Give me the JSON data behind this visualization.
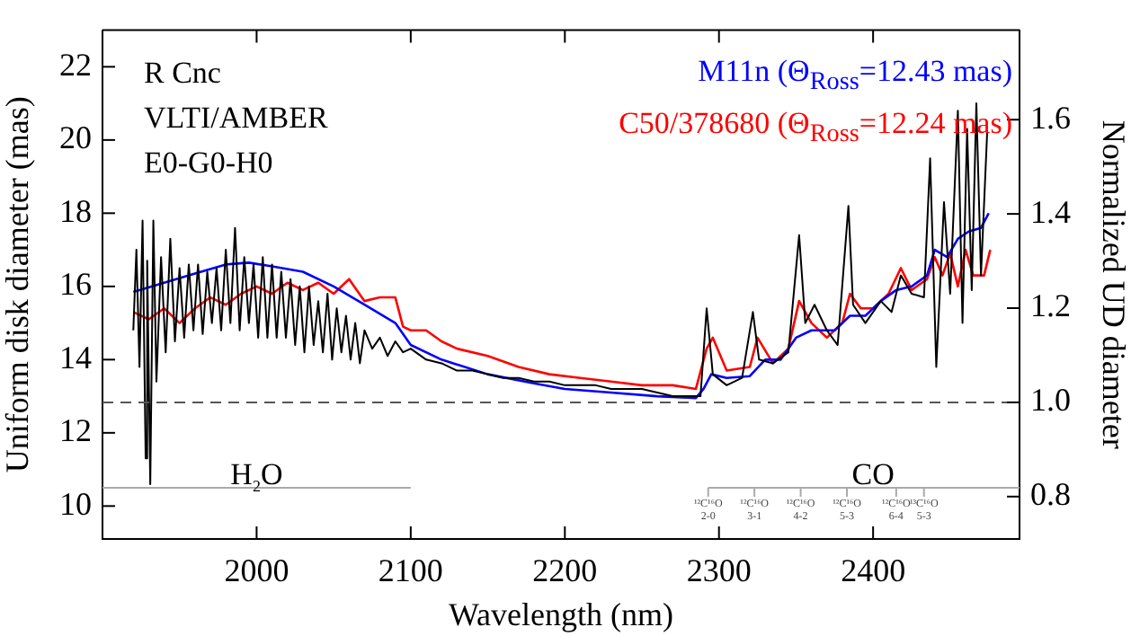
{
  "chart_data": {
    "type": "line",
    "xlabel": "Wavelength (nm)",
    "ylabel": "Uniform disk diameter (mas)",
    "y2label": "Normalized UD diameter",
    "xlim": [
      1900,
      2495
    ],
    "xticks": [
      2000,
      2100,
      2200,
      2300,
      2400
    ],
    "ylim": [
      9.1,
      23
    ],
    "yticks": [
      10,
      12,
      14,
      16,
      18,
      20,
      22
    ],
    "y2lim": [
      0.71,
      1.79
    ],
    "y2ticks": [
      0.8,
      {
        "value": 1.0,
        "label": "1.0"
      },
      1.2,
      1.4,
      1.6
    ],
    "grid": false,
    "legend": "top right",
    "marker": "none",
    "line_style": "solid",
    "ref_lines": [
      {
        "axis": "y2",
        "value": 1.0,
        "color": "#555555",
        "line_style": "dashed"
      }
    ],
    "annotations": [
      "R Cnc",
      "VLTI/AMBER",
      "E0-G0-H0",
      {
        "text": "H$_{2}$O",
        "x": 2000,
        "y": 10.5
      },
      {
        "text": "CO",
        "x": 2400,
        "y": 10.5
      },
      {
        "text": "¹²C¹⁶O 2-0",
        "x": 2293,
        "y": 10.5
      },
      {
        "text": "¹²C¹⁶O 3-1",
        "x": 2323,
        "y": 10.5
      },
      {
        "text": "¹²C¹⁶O 4-2",
        "x": 2353,
        "y": 10.5
      },
      {
        "text": "¹²C¹⁶O 5-3",
        "x": 2383,
        "y": 10.5
      },
      {
        "text": "¹²C¹⁶O 6-4",
        "x": 2415,
        "y": 10.5
      },
      {
        "text": "¹³C¹⁶O 5-3",
        "x": 2433,
        "y": 10.5
      }
    ],
    "series": [
      {
        "color": "#000000",
        "x": [
          1920,
          1922,
          1924,
          1926,
          1928,
          1929,
          1931,
          1933,
          1935,
          1938,
          1941,
          1944,
          1947,
          1950,
          1953,
          1956,
          1959,
          1962,
          1965,
          1968,
          1971,
          1974,
          1977,
          1980,
          1983,
          1986,
          1989,
          1992,
          1995,
          1998,
          2001,
          2004,
          2007,
          2010,
          2013,
          2016,
          2019,
          2022,
          2025,
          2028,
          2031,
          2034,
          2037,
          2040,
          2043,
          2046,
          2049,
          2052,
          2055,
          2058,
          2061,
          2064,
          2067,
          2070,
          2075,
          2080,
          2085,
          2090,
          2095,
          2100,
          2110,
          2120,
          2130,
          2140,
          2150,
          2160,
          2170,
          2180,
          2190,
          2200,
          2210,
          2220,
          2230,
          2240,
          2250,
          2260,
          2270,
          2280,
          2288,
          2292,
          2296,
          2305,
          2315,
          2322,
          2326,
          2335,
          2345,
          2352,
          2356,
          2362,
          2370,
          2377,
          2384,
          2387,
          2395,
          2405,
          2412,
          2418,
          2425,
          2433,
          2437,
          2441,
          2446,
          2450,
          2455,
          2458,
          2461,
          2464,
          2467,
          2470,
          2474
        ],
        "values": [
          14.8,
          17.0,
          13.8,
          17.8,
          11.3,
          16.7,
          10.6,
          17.8,
          13.4,
          16.8,
          14.2,
          17.3,
          14.5,
          16.5,
          14.6,
          16.6,
          14.8,
          16.6,
          14.7,
          16.4,
          15.0,
          16.5,
          14.8,
          17.0,
          15.0,
          17.6,
          14.8,
          16.8,
          15.0,
          16.6,
          14.6,
          16.8,
          14.6,
          16.6,
          14.6,
          16.4,
          14.6,
          16.2,
          14.4,
          16.0,
          14.2,
          16.0,
          14.4,
          15.6,
          14.2,
          15.8,
          14.0,
          15.4,
          14.2,
          15.2,
          14.0,
          15.0,
          13.9,
          14.8,
          14.3,
          14.6,
          14.1,
          14.5,
          14.2,
          14.3,
          14.0,
          13.9,
          13.7,
          13.7,
          13.6,
          13.5,
          13.5,
          13.4,
          13.4,
          13.3,
          13.3,
          13.3,
          13.2,
          13.2,
          13.2,
          13.1,
          13.0,
          13.0,
          13.0,
          15.4,
          13.6,
          13.3,
          13.5,
          15.3,
          14.0,
          13.9,
          14.2,
          17.4,
          15.0,
          15.5,
          14.8,
          14.4,
          18.2,
          15.5,
          15.0,
          15.6,
          15.3,
          16.3,
          15.8,
          15.7,
          19.5,
          13.8,
          18.3,
          15.8,
          20.8,
          15.0,
          20.3,
          15.9,
          21.0,
          16.3,
          20.2
        ]
      },
      {
        "name": "M11n (Θ$_{Ross}$=12.43 mas)",
        "color": "#0000ff",
        "x": [
          1920,
          1940,
          1960,
          1980,
          1995,
          2010,
          2030,
          2050,
          2070,
          2090,
          2100,
          2120,
          2150,
          2180,
          2200,
          2230,
          2260,
          2285,
          2290,
          2295,
          2305,
          2320,
          2330,
          2340,
          2350,
          2360,
          2375,
          2385,
          2395,
          2405,
          2415,
          2425,
          2435,
          2440,
          2448,
          2455,
          2462,
          2470,
          2475
        ],
        "values": [
          15.85,
          16.1,
          16.35,
          16.6,
          16.65,
          16.55,
          16.4,
          16.0,
          15.5,
          15.0,
          14.4,
          14.0,
          13.6,
          13.35,
          13.2,
          13.1,
          13.0,
          12.95,
          13.2,
          13.6,
          13.5,
          13.55,
          14.0,
          14.0,
          14.6,
          14.8,
          14.8,
          15.2,
          15.2,
          15.6,
          15.9,
          16.0,
          16.3,
          17.0,
          16.8,
          17.3,
          17.5,
          17.6,
          18.0
        ]
      },
      {
        "name": "C50/378680 (Θ$_{Ross}$=12.24 mas)",
        "color": "#ff0000",
        "x": [
          1920,
          1930,
          1940,
          1950,
          1960,
          1970,
          1980,
          1990,
          2000,
          2010,
          2020,
          2030,
          2040,
          2050,
          2060,
          2070,
          2080,
          2090,
          2095,
          2100,
          2110,
          2120,
          2130,
          2150,
          2170,
          2190,
          2210,
          2230,
          2250,
          2270,
          2285,
          2292,
          2296,
          2305,
          2320,
          2325,
          2335,
          2345,
          2352,
          2360,
          2370,
          2380,
          2385,
          2392,
          2400,
          2410,
          2418,
          2425,
          2435,
          2440,
          2445,
          2450,
          2455,
          2460,
          2465,
          2472,
          2476
        ],
        "values": [
          15.3,
          15.1,
          15.4,
          15.0,
          15.4,
          15.7,
          15.5,
          15.8,
          16.0,
          15.8,
          16.1,
          15.9,
          16.1,
          15.8,
          16.2,
          15.6,
          15.7,
          15.7,
          14.9,
          14.8,
          14.8,
          14.5,
          14.3,
          14.1,
          13.8,
          13.6,
          13.5,
          13.4,
          13.3,
          13.3,
          13.2,
          14.3,
          14.6,
          13.7,
          13.8,
          14.6,
          13.9,
          14.3,
          15.6,
          15.0,
          14.6,
          15.0,
          15.8,
          15.4,
          15.4,
          15.8,
          16.5,
          15.9,
          16.2,
          16.8,
          16.3,
          16.9,
          16.0,
          17.0,
          16.3,
          16.3,
          17.0
        ]
      },
      {
        "color": "#aaaaaa",
        "x": [
          1900,
          2100
        ],
        "values": [
          10.5,
          10.5
        ]
      },
      {
        "color": "#aaaaaa",
        "x": [
          2293,
          2495
        ],
        "values": [
          10.5,
          10.5
        ]
      }
    ]
  }
}
